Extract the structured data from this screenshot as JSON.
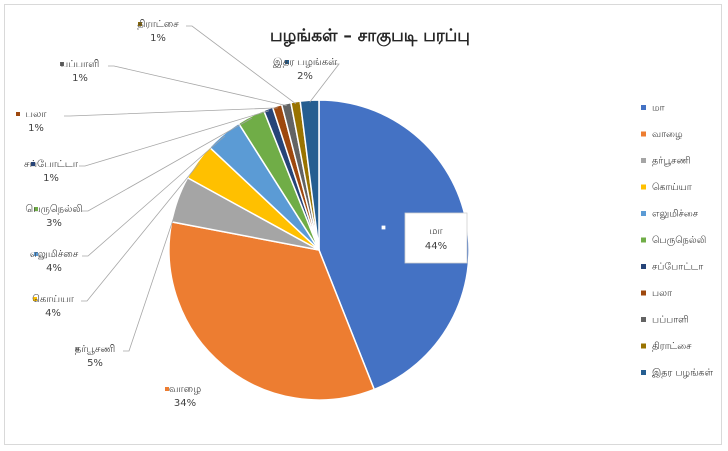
{
  "chart_data": {
    "type": "pie",
    "title": "பழங்கள் – சாகுபடி பரப்பு",
    "legend_position": "right",
    "series": [
      {
        "name": "மா",
        "value": 44,
        "label": "44%",
        "color": "#4472C4"
      },
      {
        "name": "வாழை",
        "value": 34,
        "label": "34%",
        "color": "#ED7D31"
      },
      {
        "name": "தர்பூசணி",
        "value": 5,
        "label": "5%",
        "color": "#A5A5A5"
      },
      {
        "name": "கொய்யா",
        "value": 4,
        "label": "4%",
        "color": "#FFC000"
      },
      {
        "name": "எலுமிச்சை",
        "value": 4,
        "label": "4%",
        "color": "#5B9BD5"
      },
      {
        "name": "பெருநெல்லி",
        "value": 3,
        "label": "3%",
        "color": "#70AD47"
      },
      {
        "name": "சப்போட்டா",
        "value": 1,
        "label": "1%",
        "color": "#264478"
      },
      {
        "name": "பலா",
        "value": 1,
        "label": "1%",
        "color": "#9E480E"
      },
      {
        "name": "பப்பாளி",
        "value": 1,
        "label": "1%",
        "color": "#636363"
      },
      {
        "name": "திராட்சை",
        "value": 1,
        "label": "1%",
        "color": "#997300"
      },
      {
        "name": "இதர பழங்கள்",
        "value": 2,
        "label": "2%",
        "color": "#255E91"
      }
    ]
  }
}
